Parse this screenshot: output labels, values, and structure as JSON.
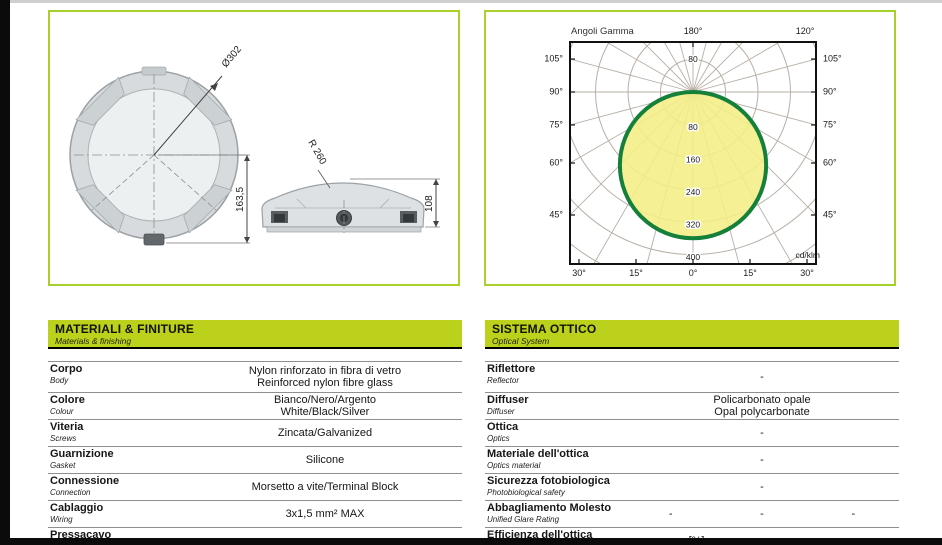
{
  "page": {
    "background": "#ffffff",
    "accent_green": "#bcd11b",
    "frame_border_green": "#a9cf2b"
  },
  "drawing": {
    "labels": {
      "diameter": "Ø302",
      "total_height": "163,5",
      "radius": "R 260",
      "body_height": "108"
    }
  },
  "chart_data": {
    "type": "polar",
    "title": "Angoli Gamma",
    "unit": "cd/klm",
    "angle_labels_top": [
      "180°",
      "120°"
    ],
    "side_angles": [
      {
        "label": "105°",
        "deg": 105
      },
      {
        "label": "90°",
        "deg": 90
      },
      {
        "label": "75°",
        "deg": 75
      },
      {
        "label": "60°",
        "deg": 60
      },
      {
        "label": "45°",
        "deg": 45
      }
    ],
    "bottom_angles": [
      {
        "label": "30°",
        "deg": -30
      },
      {
        "label": "15°",
        "deg": -15
      },
      {
        "label": "0°",
        "deg": 0
      },
      {
        "label": "15°",
        "deg": 15
      },
      {
        "label": "30°",
        "deg": 30
      }
    ],
    "ring_values": [
      80,
      160,
      240,
      320,
      400
    ],
    "ring_step": 80,
    "rings_drawn_max": 560,
    "angle_step_deg": 15,
    "grid_color": "#b7afa5",
    "curve": {
      "shape": "circle_tangent_at_origin",
      "max_value_cd_klm": 360,
      "angle_of_max_deg": 0,
      "stroke": "#15803a",
      "fill": "#f5ee86"
    }
  },
  "tables": {
    "left": {
      "title": "MATERIALI & FINITURE",
      "subtitle": "Materials & finishing",
      "rows": [
        {
          "label": "Corpo",
          "sublabel": "Body",
          "values": [
            [
              "Nylon rinforzato in fibra di vetro",
              "Reinforced nylon fibre glass"
            ]
          ]
        },
        {
          "label": "Colore",
          "sublabel": "Colour",
          "values": [
            [
              "Bianco/Nero/Argento",
              "White/Black/Silver"
            ]
          ]
        },
        {
          "label": "Viteria",
          "sublabel": "Screws",
          "values": [
            [
              "Zincata/Galvanized"
            ]
          ]
        },
        {
          "label": "Guarnizione",
          "sublabel": "Gasket",
          "values": [
            [
              "Silicone"
            ]
          ]
        },
        {
          "label": "Connessione",
          "sublabel": "Connection",
          "values": [
            [
              "Morsetto a vite/Terminal Block"
            ]
          ]
        },
        {
          "label": "Cablaggio",
          "sublabel": "Wiring",
          "values": [
            [
              "3x1,5 mm² MAX"
            ]
          ]
        },
        {
          "label": "Pressacavo",
          "sublabel": "",
          "values": [
            [
              "-"
            ]
          ]
        }
      ]
    },
    "right": {
      "title": "SISTEMA OTTICO",
      "subtitle": "Optical System",
      "rows": [
        {
          "label": "Riflettore",
          "sublabel": "Reflector",
          "values": [
            [
              "-"
            ]
          ]
        },
        {
          "label": "Diffuser",
          "sublabel": "Diffuser",
          "values": [
            [
              "Policarbonato opale",
              "Opal polycarbonate"
            ]
          ]
        },
        {
          "label": "Ottica",
          "sublabel": "Optics",
          "values": [
            [
              "-"
            ]
          ]
        },
        {
          "label": "Materiale dell'ottica",
          "sublabel": "Optics material",
          "values": [
            [
              "-"
            ]
          ]
        },
        {
          "label": "Sicurezza fotobiologica",
          "sublabel": "Photobiological safety",
          "values": [
            [
              "-"
            ]
          ]
        },
        {
          "label": "Abbagliamento Molesto",
          "sublabel": "Unified Glare Rating",
          "values": [
            [
              "-"
            ],
            [
              "-"
            ],
            [
              "-"
            ]
          ]
        },
        {
          "label": "Efficienza dell'ottica",
          "sublabel": "",
          "values": [
            [
              "[%]"
            ],
            [
              "-"
            ]
          ]
        }
      ]
    }
  }
}
